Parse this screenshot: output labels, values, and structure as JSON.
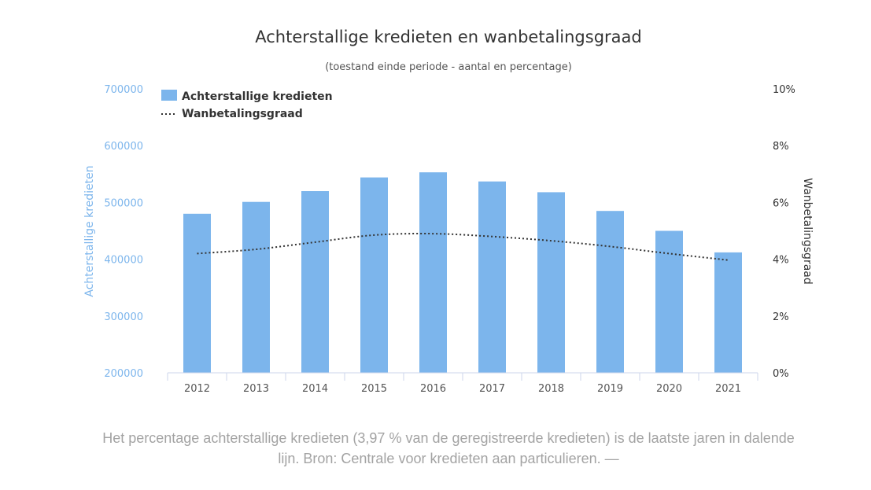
{
  "caption": "Het percentage achterstallige kredieten (3,97 % van de geregistreerde kredieten) is de laatste jaren in dalende lijn. Bron: Centrale voor kredieten aan particulieren. —",
  "colors": {
    "bar": "#7cb5ec",
    "line": "#333333",
    "left_axis_text": "#7cb5ec",
    "text": "#333333",
    "axis_text": "#555555"
  },
  "chart_data": {
    "type": "bar",
    "title": "Achterstallige kredieten en wanbetalingsgraad",
    "subtitle": "(toestand einde periode - aantal en percentage)",
    "categories": [
      "2012",
      "2013",
      "2014",
      "2015",
      "2016",
      "2017",
      "2018",
      "2019",
      "2020",
      "2021"
    ],
    "series": [
      {
        "name": "Achterstallige kredieten",
        "type": "bar",
        "axis": "left",
        "values": [
          480000,
          501000,
          520000,
          544000,
          553000,
          537000,
          518000,
          485000,
          450000,
          412000
        ]
      },
      {
        "name": "Wanbetalingsgraad",
        "type": "line",
        "style": "dotted",
        "axis": "right",
        "unit": "%",
        "values": [
          4.2,
          4.35,
          4.6,
          4.85,
          4.9,
          4.8,
          4.65,
          4.45,
          4.2,
          3.97
        ]
      }
    ],
    "y_left": {
      "label": "Achterstallige kredieten",
      "min": 200000,
      "max": 700000,
      "ticks": [
        "200000",
        "300000",
        "400000",
        "500000",
        "600000",
        "700000"
      ]
    },
    "y_right": {
      "label": "Wanbetalingsgraad",
      "min": 0,
      "max": 10,
      "ticks": [
        "0%",
        "2%",
        "4%",
        "6%",
        "8%",
        "10%"
      ]
    },
    "grid": false,
    "legend": "top-left"
  }
}
